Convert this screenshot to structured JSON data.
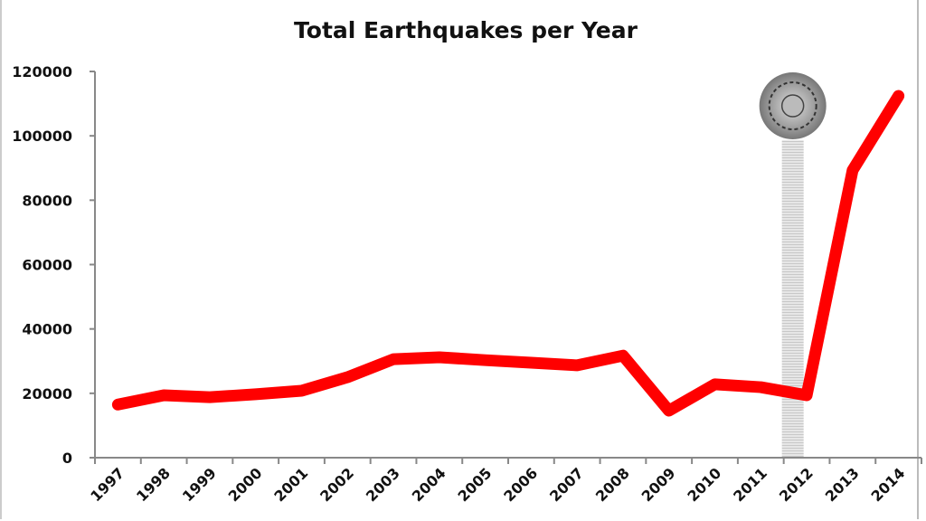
{
  "chart_data": {
    "type": "line",
    "title": "Total Earthquakes per Year",
    "xlabel": "",
    "ylabel": "",
    "categories": [
      "1997",
      "1998",
      "1999",
      "2000",
      "2001",
      "2002",
      "2003",
      "2004",
      "2005",
      "2006",
      "2007",
      "2008",
      "2009",
      "2010",
      "2011",
      "2012",
      "2013",
      "2014"
    ],
    "series": [
      {
        "name": "Total Earthquakes",
        "color": "#ff0000",
        "values": [
          16500,
          19400,
          18800,
          19700,
          20800,
          25000,
          30600,
          31200,
          30300,
          29500,
          28700,
          31700,
          14600,
          22800,
          21900,
          19400,
          89300,
          112400
        ]
      }
    ],
    "ylim": [
      0,
      120000
    ],
    "yticks": [
      "0",
      "20000",
      "40000",
      "60000",
      "80000",
      "100000",
      "120000"
    ],
    "grid": false,
    "annotations": [
      {
        "type": "highlight-band",
        "at": "2012",
        "note": "calendar stone image marker",
        "color": "#d9d9d9"
      }
    ]
  }
}
